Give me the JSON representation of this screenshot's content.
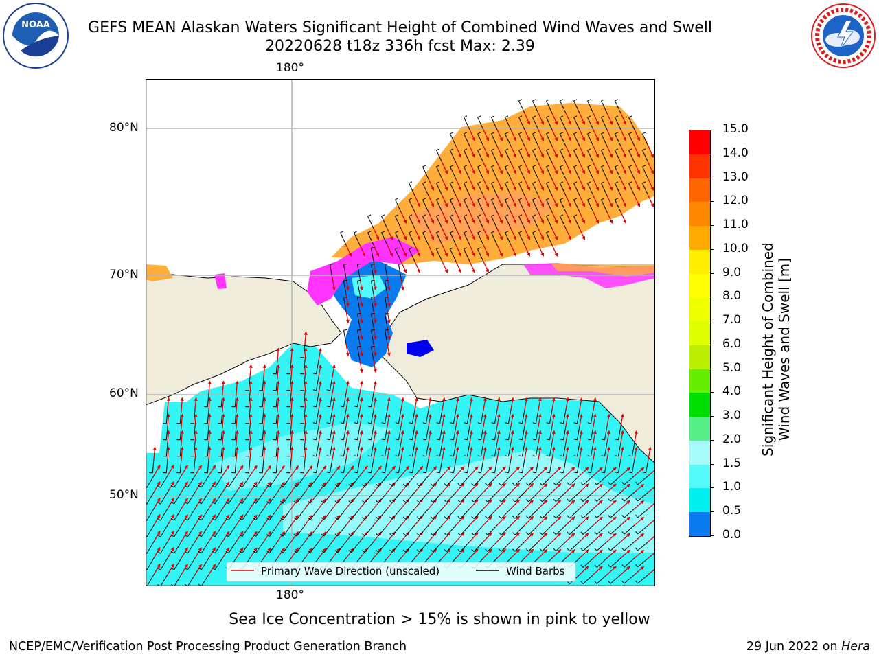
{
  "header": {
    "title_line1": "GEFS MEAN Alaskan Waters Significant Height of Combined Wind Waves and Swell",
    "title_line2": "20220628 t18z 336h fcst   Max: 2.39"
  },
  "logos": {
    "left": "noaa-logo",
    "right": "nws-logo"
  },
  "map": {
    "lon_labels": {
      "top": "180°",
      "bottom": "180°"
    },
    "lat_labels": [
      "80°N",
      "70°N",
      "60°N",
      "50°N"
    ],
    "legend": {
      "wave_label": "Primary Wave Direction (unscaled)",
      "wind_label": "Wind Barbs",
      "wave_color": "#e00000",
      "wind_color": "#000000"
    },
    "colors": {
      "land": "#efecdc",
      "ocean_wave": "#33f5f5",
      "ocean_high": "#a6fafa",
      "ice_orange": "#ffae3c",
      "ice_magenta": "#ff35ff",
      "wave_low": "#0a7aef",
      "grid": "#b4b4b4"
    }
  },
  "colorbar": {
    "ticks": [
      "15.0",
      "14.0",
      "13.0",
      "12.0",
      "11.0",
      "10.0",
      "9.0",
      "8.0",
      "7.0",
      "6.0",
      "5.0",
      "4.0",
      "3.0",
      "2.0",
      "1.5",
      "1.0",
      "0.5",
      "0.0"
    ],
    "colors": [
      "#ff0000",
      "#ff3300",
      "#ff6600",
      "#ff8800",
      "#ffaa00",
      "#ffee00",
      "#ffff00",
      "#eeff00",
      "#ddff00",
      "#bbee00",
      "#66ee00",
      "#00dd00",
      "#55ee88",
      "#a6fafa",
      "#55fafa",
      "#00f0f0",
      "#0a7aef",
      "#0000ff"
    ],
    "label_line1": "Significant Height of Combined",
    "label_line2": "Wind Waves and Swell [m]"
  },
  "ice_note": "Sea Ice Concentration > 15% is shown in pink to yellow",
  "footer": {
    "left": "NCEP/EMC/Verification Post Processing Product Generation Branch",
    "right_date": "29 Jun 2022 on",
    "right_host": "Hera"
  }
}
